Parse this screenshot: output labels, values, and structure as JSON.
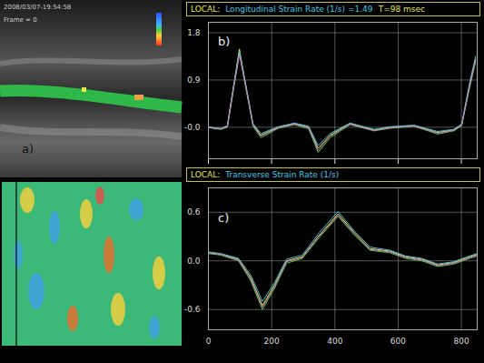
{
  "image_panel": {
    "timestamp": "2008/03/07-19:54:58",
    "frame": "Frame = 0",
    "label": "a)"
  },
  "chart_data": [
    {
      "type": "line",
      "title": "LOCAL:",
      "subtitle": "Longitudinal Strain Rate (1/s) =1.49",
      "annotations": [
        "T=98 msec"
      ],
      "panel_label": "b)",
      "x": [
        0,
        20,
        40,
        60,
        75,
        98,
        115,
        141,
        166,
        221,
        272,
        317,
        347,
        385,
        448,
        524,
        574,
        650,
        725,
        776,
        801,
        826,
        845
      ],
      "series": [
        {
          "color": "#e8e84a",
          "values": [
            0,
            -0.02,
            -0.03,
            0.02,
            0.6,
            1.49,
            0.9,
            0.05,
            -0.15,
            0,
            0.07,
            0,
            -0.4,
            -0.15,
            0.07,
            -0.05,
            0,
            0.03,
            -0.1,
            -0.05,
            0.05,
            0.8,
            1.3
          ]
        },
        {
          "color": "#3cd03c",
          "values": [
            0,
            -0.03,
            -0.04,
            0.0,
            0.55,
            1.42,
            0.85,
            0.02,
            -0.2,
            -0.02,
            0.05,
            -0.03,
            -0.48,
            -0.2,
            0.05,
            -0.07,
            -0.02,
            0.02,
            -0.13,
            -0.07,
            0.03,
            0.75,
            1.25
          ]
        },
        {
          "color": "#40c8e8",
          "values": [
            0.01,
            -0.01,
            -0.02,
            0.03,
            0.62,
            1.45,
            0.92,
            0.07,
            -0.12,
            0.01,
            0.08,
            0.02,
            -0.35,
            -0.12,
            0.08,
            -0.04,
            0.01,
            0.04,
            -0.08,
            -0.04,
            0.06,
            0.85,
            1.35
          ]
        },
        {
          "color": "#e070c0",
          "values": [
            0,
            -0.02,
            -0.03,
            0.01,
            0.58,
            1.38,
            0.88,
            0.04,
            -0.17,
            -0.01,
            0.06,
            -0.01,
            -0.44,
            -0.17,
            0.06,
            -0.06,
            -0.01,
            0.02,
            -0.11,
            -0.06,
            0.04,
            0.78,
            1.28
          ]
        }
      ],
      "xlim": [
        0,
        850
      ],
      "ylim": [
        -0.6,
        2.0
      ],
      "xticks": [
        0,
        200,
        400,
        600,
        800
      ],
      "yticks": [
        {
          "value": 0,
          "label": "-0.0"
        },
        0.9,
        1.8
      ],
      "grid": true,
      "tick_labels": "y"
    },
    {
      "type": "line",
      "title": "LOCAL:",
      "subtitle": "Transverse Strain Rate (1/s)",
      "panel_label": "c)",
      "x": [
        0,
        40,
        95,
        133,
        171,
        209,
        247,
        297,
        347,
        410,
        461,
        511,
        574,
        624,
        675,
        725,
        776,
        826,
        850
      ],
      "series": [
        {
          "color": "#e8e84a",
          "values": [
            0.1,
            0.08,
            0.02,
            -0.2,
            -0.55,
            -0.3,
            0,
            0.05,
            0.3,
            0.58,
            0.35,
            0.15,
            0.12,
            0.05,
            0.02,
            -0.05,
            -0.02,
            0.05,
            0.08
          ]
        },
        {
          "color": "#3cd03c",
          "values": [
            0.09,
            0.07,
            0.0,
            -0.24,
            -0.6,
            -0.34,
            -0.03,
            0.03,
            0.27,
            0.55,
            0.32,
            0.13,
            0.1,
            0.03,
            0.0,
            -0.07,
            -0.04,
            0.03,
            0.06
          ]
        },
        {
          "color": "#40c8e8",
          "values": [
            0.11,
            0.09,
            0.03,
            -0.17,
            -0.5,
            -0.27,
            0.02,
            0.07,
            0.33,
            0.61,
            0.37,
            0.17,
            0.13,
            0.06,
            0.03,
            -0.04,
            -0.01,
            0.06,
            0.09
          ]
        },
        {
          "color": "#e070c0",
          "values": [
            0.1,
            0.08,
            0.01,
            -0.22,
            -0.57,
            -0.32,
            -0.01,
            0.04,
            0.29,
            0.56,
            0.34,
            0.14,
            0.11,
            0.04,
            0.01,
            -0.06,
            -0.03,
            0.04,
            0.07
          ]
        }
      ],
      "xlim": [
        0,
        850
      ],
      "ylim": [
        -0.85,
        0.9
      ],
      "xticks": [
        0,
        200,
        400,
        600,
        800
      ],
      "yticks": [
        -0.6,
        {
          "value": 0,
          "label": "0.0"
        },
        0.6
      ],
      "grid": true,
      "tick_labels": true
    }
  ]
}
